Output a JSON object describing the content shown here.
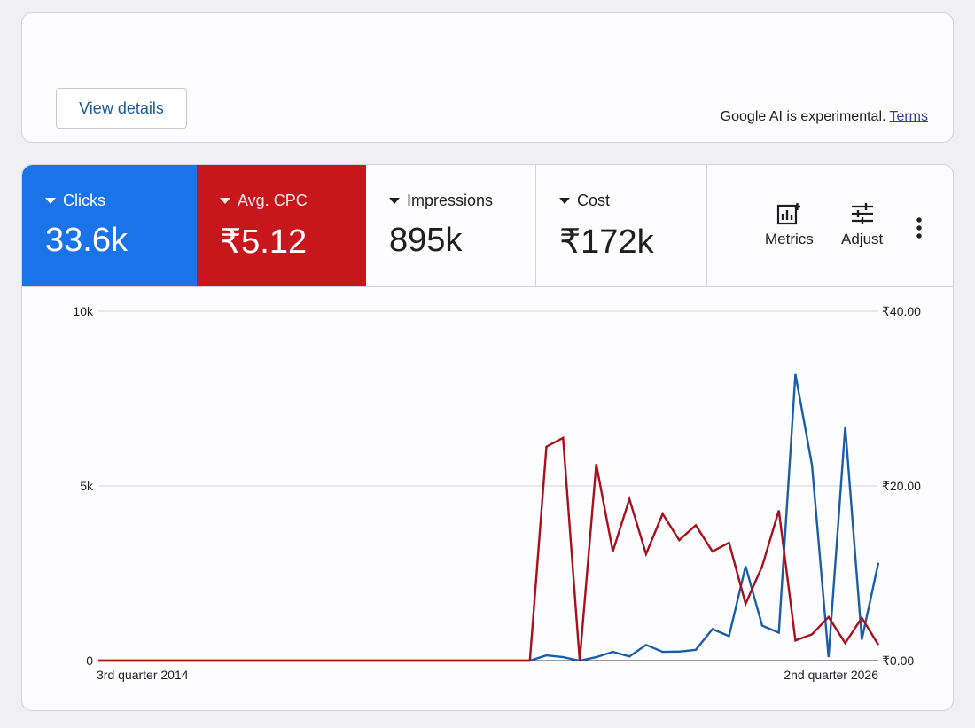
{
  "top_card": {
    "view_details_label": "View details",
    "ai_note": "Google AI is experimental.",
    "terms_link": "Terms"
  },
  "tiles": [
    {
      "label": "Clicks",
      "value": "33.6k",
      "color": "#1a73e8"
    },
    {
      "label": "Avg. CPC",
      "value": "₹5.12",
      "color": "#c8161d"
    },
    {
      "label": "Impressions",
      "value": "895k"
    },
    {
      "label": "Cost",
      "value": "₹172k"
    }
  ],
  "toolbar": {
    "metrics_label": "Metrics",
    "adjust_label": "Adjust",
    "icons": [
      "metrics-icon",
      "adjust-icon",
      "more-vert-icon"
    ]
  },
  "chart_data": {
    "type": "line",
    "x_start_label": "3rd quarter 2014",
    "x_end_label": "2nd quarter 2026",
    "y_left": {
      "ticks": [
        "0",
        "5k",
        "10k"
      ],
      "range": [
        0,
        10000
      ]
    },
    "y_right": {
      "ticks": [
        "₹0.00",
        "₹20.00",
        "₹40.00"
      ],
      "range": [
        0,
        40
      ]
    },
    "grid": true,
    "series": [
      {
        "name": "Clicks",
        "axis": "left",
        "color": "#1a5ea8",
        "values": [
          0,
          0,
          0,
          0,
          0,
          0,
          0,
          0,
          0,
          0,
          0,
          0,
          0,
          0,
          0,
          0,
          0,
          0,
          0,
          0,
          0,
          0,
          0,
          0,
          0,
          0,
          0,
          150,
          100,
          0,
          100,
          250,
          120,
          450,
          250,
          260,
          310,
          900,
          700,
          2700,
          1000,
          800,
          8200,
          5600,
          100,
          6700,
          600,
          2800
        ]
      },
      {
        "name": "Avg. CPC",
        "axis": "right",
        "color": "#a8101c",
        "values": [
          0,
          0,
          0,
          0,
          0,
          0,
          0,
          0,
          0,
          0,
          0,
          0,
          0,
          0,
          0,
          0,
          0,
          0,
          0,
          0,
          0,
          0,
          0,
          0,
          0,
          0,
          0,
          24.5,
          25.5,
          0,
          22.5,
          12.5,
          18.5,
          12.2,
          16.8,
          13.8,
          15.5,
          12.5,
          13.5,
          6.5,
          10.8,
          17.2,
          2.3,
          3,
          5,
          2,
          4.9,
          1.8
        ]
      }
    ]
  }
}
